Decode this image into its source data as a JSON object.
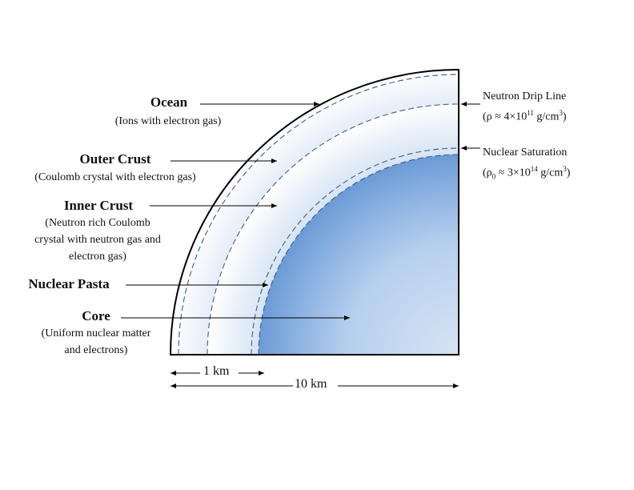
{
  "layers": {
    "ocean": {
      "title": "Ocean",
      "desc": "(Ions with electron gas)"
    },
    "outer_crust": {
      "title": "Outer Crust",
      "desc": "(Coulomb crystal with electron gas)"
    },
    "inner_crust": {
      "title": "Inner Crust",
      "desc1": "(Neutron rich Coulomb",
      "desc2": "crystal with neutron gas and",
      "desc3": "electron gas)"
    },
    "nuclear_pasta": {
      "title": "Nuclear Pasta"
    },
    "core": {
      "title": "Core",
      "desc1": "(Uniform nuclear matter",
      "desc2": "and electrons)"
    }
  },
  "boundaries": {
    "drip_line": {
      "title": "Neutron Drip Line",
      "prefix": "(ρ ≈ 4×10",
      "exp": "11",
      "unit": " g/cm",
      "unit_exp": "3",
      "suffix": ")"
    },
    "saturation": {
      "title": "Nuclear Saturation",
      "prefix": "(ρ",
      "sub": "0",
      "mid": " ≈ 3×10",
      "exp": "14",
      "unit": " g/cm",
      "unit_exp": "3",
      "suffix": ")"
    }
  },
  "scale": {
    "small": "1 km",
    "large": "10 km"
  },
  "colors": {
    "outline": "#000000",
    "dashed": "#3a5f80",
    "core_blue": "#6f9fd8",
    "pale_blue": "#d9e6f5"
  }
}
